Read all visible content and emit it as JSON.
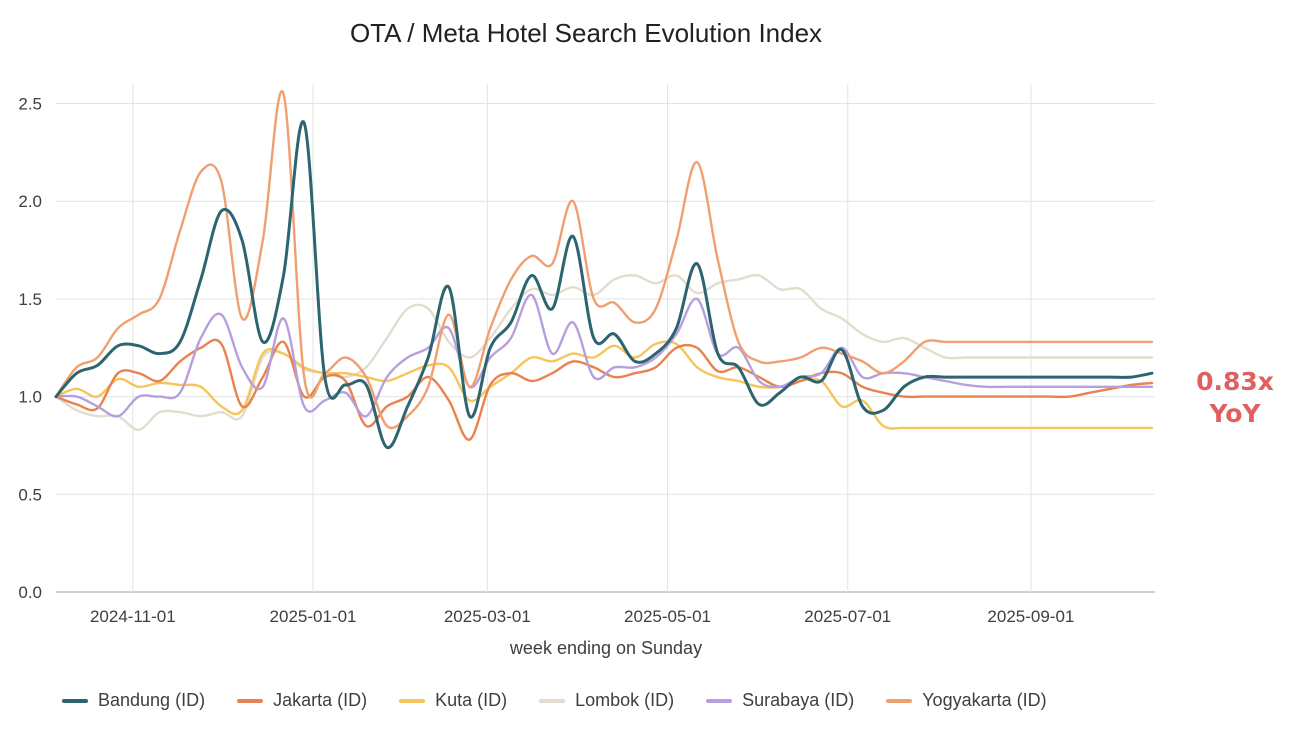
{
  "chart_data": {
    "type": "line",
    "title": "OTA / Meta Hotel Search Evolution Index",
    "xlabel": "week ending on Sunday",
    "ylabel": "",
    "ylim": [
      0,
      2.6
    ],
    "yticks": [
      0.0,
      0.5,
      1.0,
      1.5,
      2.0,
      2.5
    ],
    "ytick_labels": [
      "0.0",
      "0.5",
      "1.0",
      "1.5",
      "2.0",
      "2.5"
    ],
    "xlim": [
      "2024-10-06",
      "2025-10-13"
    ],
    "xticks": [
      "2024-11-01",
      "2025-01-01",
      "2025-03-01",
      "2025-05-01",
      "2025-07-01",
      "2025-09-01"
    ],
    "grid": true,
    "legend_position": "bottom",
    "x": [
      "2024-10-06",
      "2024-10-13",
      "2024-10-20",
      "2024-10-27",
      "2024-11-03",
      "2024-11-10",
      "2024-11-17",
      "2024-11-24",
      "2024-12-01",
      "2024-12-08",
      "2024-12-15",
      "2024-12-22",
      "2024-12-29",
      "2025-01-05",
      "2025-01-12",
      "2025-01-19",
      "2025-01-26",
      "2025-02-02",
      "2025-02-09",
      "2025-02-16",
      "2025-02-23",
      "2025-03-02",
      "2025-03-09",
      "2025-03-16",
      "2025-03-23",
      "2025-03-30",
      "2025-04-06",
      "2025-04-13",
      "2025-04-20",
      "2025-04-27",
      "2025-05-04",
      "2025-05-11",
      "2025-05-18",
      "2025-05-25",
      "2025-06-01",
      "2025-06-08",
      "2025-06-15",
      "2025-06-22",
      "2025-06-29",
      "2025-07-06",
      "2025-07-13",
      "2025-07-20",
      "2025-07-27",
      "2025-08-03",
      "2025-08-10",
      "2025-08-17",
      "2025-08-24",
      "2025-08-31",
      "2025-09-07",
      "2025-09-14",
      "2025-09-21",
      "2025-09-28",
      "2025-10-05",
      "2025-10-12"
    ],
    "series": [
      {
        "name": "Bandung (ID)",
        "color": "#2c6470",
        "values": [
          1.0,
          1.12,
          1.16,
          1.26,
          1.26,
          1.22,
          1.28,
          1.6,
          1.95,
          1.8,
          1.28,
          1.62,
          2.4,
          1.1,
          1.06,
          1.06,
          0.74,
          0.95,
          1.2,
          1.56,
          0.9,
          1.25,
          1.38,
          1.62,
          1.45,
          1.82,
          1.3,
          1.32,
          1.18,
          1.22,
          1.35,
          1.68,
          1.22,
          1.15,
          0.96,
          1.02,
          1.1,
          1.08,
          1.24,
          0.95,
          0.93,
          1.05,
          1.1,
          1.1,
          1.1,
          1.1,
          1.1,
          1.1,
          1.1,
          1.1,
          1.1,
          1.1,
          1.1,
          1.12
        ]
      },
      {
        "name": "Jakarta (ID)",
        "color": "#e8824e",
        "values": [
          1.0,
          0.96,
          0.94,
          1.12,
          1.12,
          1.08,
          1.18,
          1.25,
          1.27,
          0.95,
          1.1,
          1.28,
          1.0,
          1.1,
          1.08,
          0.85,
          0.95,
          1.0,
          1.1,
          0.98,
          0.78,
          1.06,
          1.12,
          1.08,
          1.12,
          1.18,
          1.15,
          1.1,
          1.12,
          1.15,
          1.25,
          1.25,
          1.13,
          1.15,
          1.1,
          1.05,
          1.08,
          1.12,
          1.12,
          1.05,
          1.02,
          1.0,
          1.0,
          1.0,
          1.0,
          1.0,
          1.0,
          1.0,
          1.0,
          1.0,
          1.02,
          1.04,
          1.06,
          1.07
        ]
      },
      {
        "name": "Kuta (ID)",
        "color": "#f6c55a",
        "values": [
          1.0,
          1.04,
          1.0,
          1.09,
          1.05,
          1.07,
          1.06,
          1.05,
          0.95,
          0.93,
          1.22,
          1.22,
          1.15,
          1.12,
          1.12,
          1.1,
          1.08,
          1.12,
          1.16,
          1.15,
          0.98,
          1.05,
          1.12,
          1.2,
          1.18,
          1.22,
          1.2,
          1.26,
          1.2,
          1.27,
          1.27,
          1.15,
          1.1,
          1.08,
          1.05,
          1.05,
          1.08,
          1.08,
          0.95,
          0.98,
          0.85,
          0.84,
          0.84,
          0.84,
          0.84,
          0.84,
          0.84,
          0.84,
          0.84,
          0.84,
          0.84,
          0.84,
          0.84,
          0.84
        ]
      },
      {
        "name": "Lombok (ID)",
        "color": "#e3ddce",
        "values": [
          1.0,
          0.93,
          0.9,
          0.9,
          0.83,
          0.92,
          0.92,
          0.9,
          0.92,
          0.9,
          1.2,
          1.22,
          1.14,
          1.12,
          1.1,
          1.15,
          1.3,
          1.45,
          1.45,
          1.28,
          1.2,
          1.3,
          1.45,
          1.55,
          1.52,
          1.56,
          1.52,
          1.6,
          1.62,
          1.58,
          1.62,
          1.53,
          1.58,
          1.6,
          1.62,
          1.55,
          1.55,
          1.45,
          1.4,
          1.32,
          1.28,
          1.3,
          1.25,
          1.2,
          1.2,
          1.2,
          1.2,
          1.2,
          1.2,
          1.2,
          1.2,
          1.2,
          1.2,
          1.2
        ]
      },
      {
        "name": "Surabaya (ID)",
        "color": "#b79fdd",
        "values": [
          1.0,
          1.0,
          0.95,
          0.9,
          1.0,
          1.0,
          1.02,
          1.3,
          1.42,
          1.15,
          1.05,
          1.4,
          0.95,
          0.98,
          1.02,
          0.9,
          1.1,
          1.2,
          1.25,
          1.35,
          1.05,
          1.2,
          1.3,
          1.52,
          1.22,
          1.38,
          1.1,
          1.15,
          1.15,
          1.2,
          1.32,
          1.5,
          1.22,
          1.25,
          1.08,
          1.05,
          1.1,
          1.12,
          1.25,
          1.1,
          1.12,
          1.12,
          1.1,
          1.08,
          1.06,
          1.05,
          1.05,
          1.05,
          1.05,
          1.05,
          1.05,
          1.05,
          1.05,
          1.05
        ]
      },
      {
        "name": "Yogyakarta (ID)",
        "color": "#f0a070",
        "values": [
          1.0,
          1.15,
          1.2,
          1.35,
          1.42,
          1.5,
          1.85,
          2.15,
          2.1,
          1.4,
          1.8,
          2.55,
          1.1,
          1.12,
          1.2,
          1.1,
          0.85,
          0.9,
          1.05,
          1.42,
          1.05,
          1.35,
          1.6,
          1.72,
          1.68,
          2.0,
          1.5,
          1.48,
          1.38,
          1.45,
          1.8,
          2.2,
          1.7,
          1.28,
          1.18,
          1.18,
          1.2,
          1.25,
          1.22,
          1.18,
          1.12,
          1.18,
          1.28,
          1.28,
          1.28,
          1.28,
          1.28,
          1.28,
          1.28,
          1.28,
          1.28,
          1.28,
          1.28,
          1.28
        ]
      }
    ]
  },
  "annotation": {
    "value": "0.83x",
    "label": "YoY",
    "color": "#e06060"
  }
}
